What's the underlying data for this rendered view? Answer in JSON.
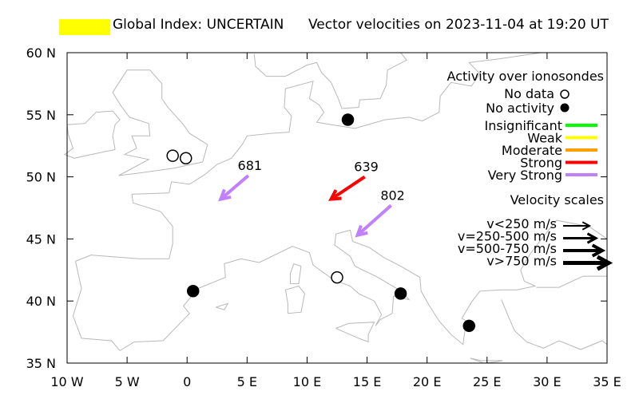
{
  "header": {
    "global_index": "Global Index: UNCERTAIN",
    "title": "Vector velocities on 2023-11-04 at 19:20 UT",
    "index_color": "#ffff00"
  },
  "axes": {
    "lat_labels": [
      "35 N",
      "40 N",
      "45 N",
      "50 N",
      "55 N",
      "60 N"
    ],
    "lat_values": [
      35,
      40,
      45,
      50,
      55,
      60
    ],
    "lon_labels": [
      "10 W",
      "5 W",
      "0",
      "5 E",
      "10 E",
      "15 E",
      "20 E",
      "25 E",
      "30 E",
      "35 E"
    ],
    "lon_values": [
      -10,
      -5,
      0,
      5,
      10,
      15,
      20,
      25,
      30,
      35
    ]
  },
  "legend": {
    "activity_title": "Activity over ionosondes",
    "no_data": "No data",
    "no_activity": "No activity",
    "levels": [
      {
        "label": "Insignificant",
        "color": "#00ff00"
      },
      {
        "label": "Weak",
        "color": "#ffff00"
      },
      {
        "label": "Moderate",
        "color": "#ffa000"
      },
      {
        "label": "Strong",
        "color": "#ff0000"
      },
      {
        "label": "Very Strong",
        "color": "#c080ff"
      }
    ],
    "velocity_title": "Velocity scales",
    "velocity_scales": [
      "v<250 m/s",
      "v=250-500 m/s",
      "v=500-750 m/s",
      "v>750 m/s"
    ]
  },
  "stations": [
    {
      "lon": -1.2,
      "lat": 51.7,
      "status": "no-data"
    },
    {
      "lon": -0.1,
      "lat": 51.5,
      "status": "no-data"
    },
    {
      "lon": 12.5,
      "lat": 41.9,
      "status": "no-data"
    },
    {
      "lon": 13.4,
      "lat": 54.6,
      "status": "no-activity"
    },
    {
      "lon": 0.5,
      "lat": 40.8,
      "status": "no-activity"
    },
    {
      "lon": 17.8,
      "lat": 40.6,
      "status": "no-activity"
    },
    {
      "lon": 23.5,
      "lat": 38.0,
      "status": "no-activity"
    }
  ],
  "vectors": [
    {
      "label": "681",
      "lon": 2.8,
      "lat": 48.2,
      "from_lon": 5.1,
      "from_lat": 50.1,
      "level": "Very Strong"
    },
    {
      "label": "639",
      "lon": 12.0,
      "lat": 48.2,
      "from_lon": 14.8,
      "from_lat": 50.0,
      "level": "Strong"
    },
    {
      "label": "802",
      "lon": 14.2,
      "lat": 45.3,
      "from_lon": 17.0,
      "from_lat": 47.7,
      "level": "Very Strong"
    }
  ]
}
